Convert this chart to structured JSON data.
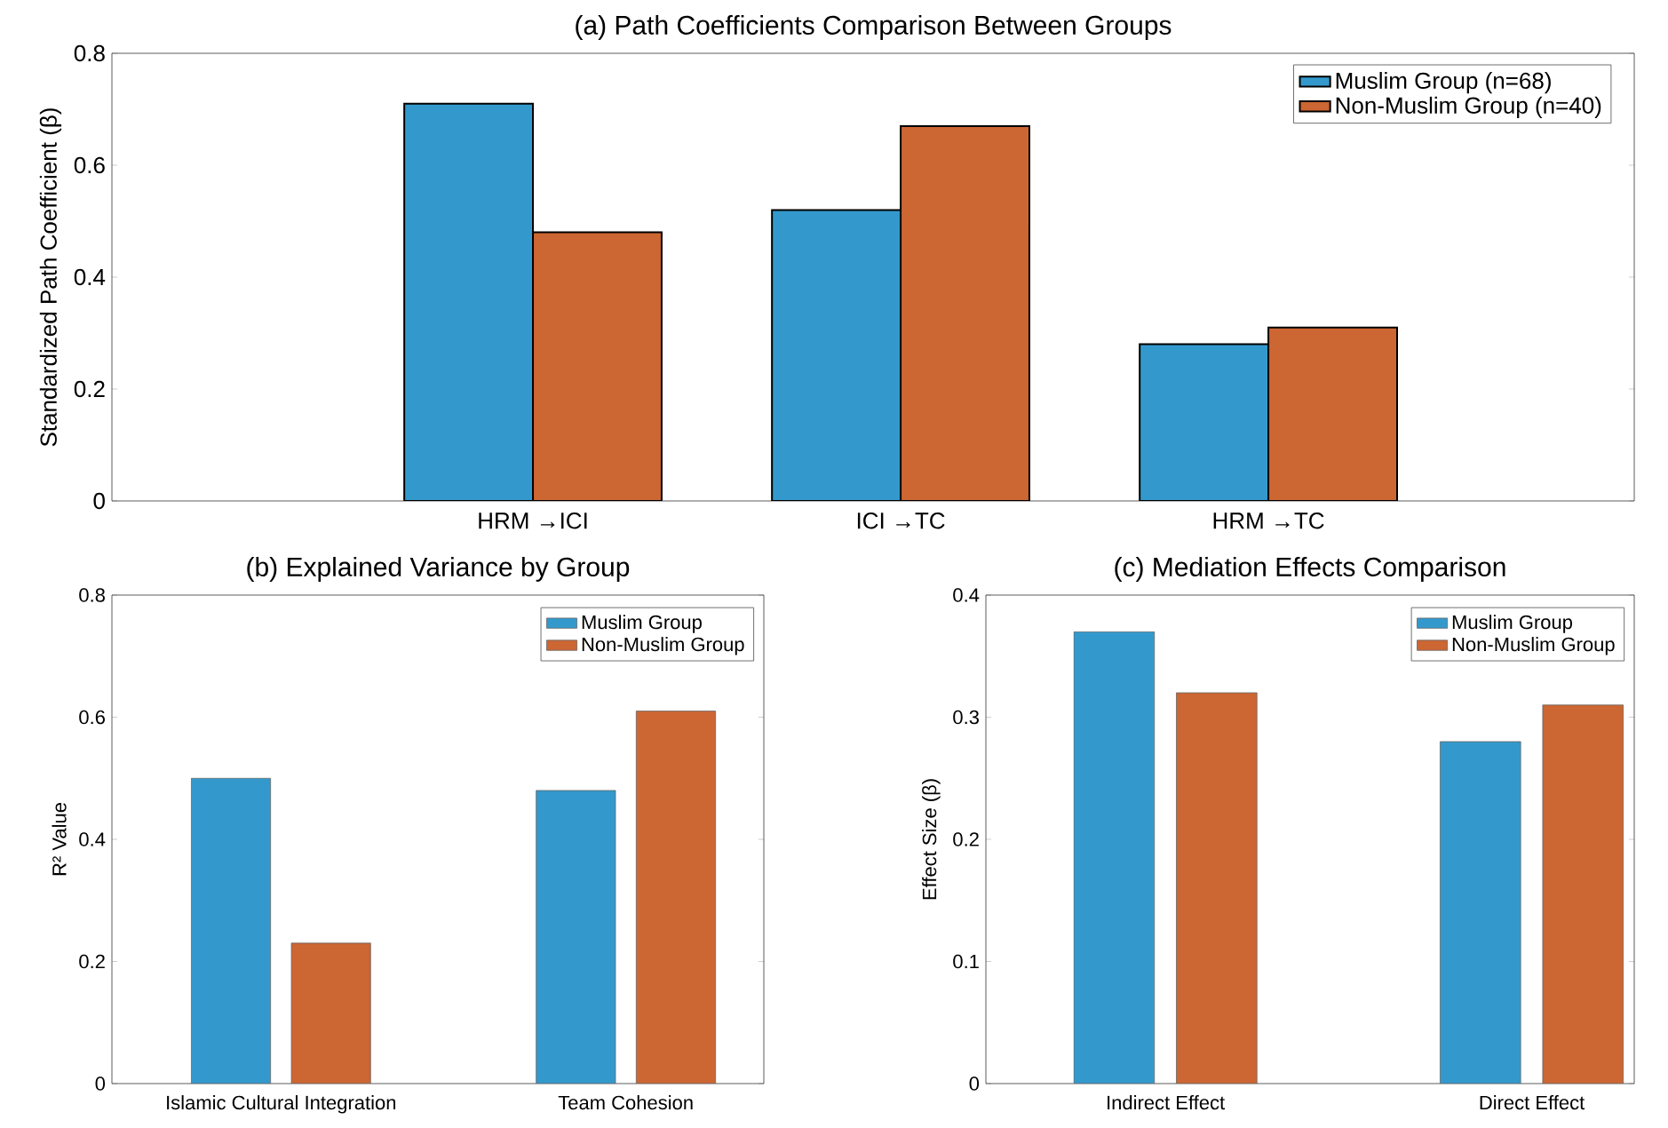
{
  "chart_data": [
    {
      "type": "bar",
      "title": "(a) Path Coefficients Comparison Between Groups",
      "ylabel": "Standardized Path Coefficient (β)",
      "categories": [
        "HRM →ICI",
        "ICI →TC",
        "HRM →TC"
      ],
      "series": [
        {
          "name": "Muslim Group (n=68)",
          "color": "#3399cc",
          "values": [
            0.71,
            0.52,
            0.28
          ]
        },
        {
          "name": "Non-Muslim Group (n=40)",
          "color": "#cc6633",
          "values": [
            0.48,
            0.67,
            0.31
          ]
        }
      ],
      "ylim": [
        0,
        0.8
      ],
      "yticks": [
        0,
        0.2,
        0.4,
        0.6,
        0.8
      ],
      "legend": "top right"
    },
    {
      "type": "bar",
      "title": "(b) Explained Variance by Group",
      "ylabel": "R² Value",
      "categories": [
        "Islamic Cultural Integration",
        "Team Cohesion"
      ],
      "series": [
        {
          "name": "Muslim Group",
          "color": "#3399cc",
          "values": [
            0.5,
            0.48
          ]
        },
        {
          "name": "Non-Muslim Group",
          "color": "#cc6633",
          "values": [
            0.23,
            0.61
          ]
        }
      ],
      "ylim": [
        0,
        0.8
      ],
      "yticks": [
        0,
        0.2,
        0.4,
        0.6,
        0.8
      ],
      "legend": "top right"
    },
    {
      "type": "bar",
      "title": "(c) Mediation Effects Comparison",
      "ylabel": "Effect Size (β)",
      "categories": [
        "Indirect Effect",
        "Direct Effect"
      ],
      "series": [
        {
          "name": "Muslim Group",
          "color": "#3399cc",
          "values": [
            0.37,
            0.28
          ]
        },
        {
          "name": "Non-Muslim Group",
          "color": "#cc6633",
          "values": [
            0.32,
            0.31
          ]
        }
      ],
      "ylim": [
        0,
        0.4
      ],
      "yticks": [
        0,
        0.1,
        0.2,
        0.3,
        0.4
      ],
      "legend": "top right"
    }
  ]
}
